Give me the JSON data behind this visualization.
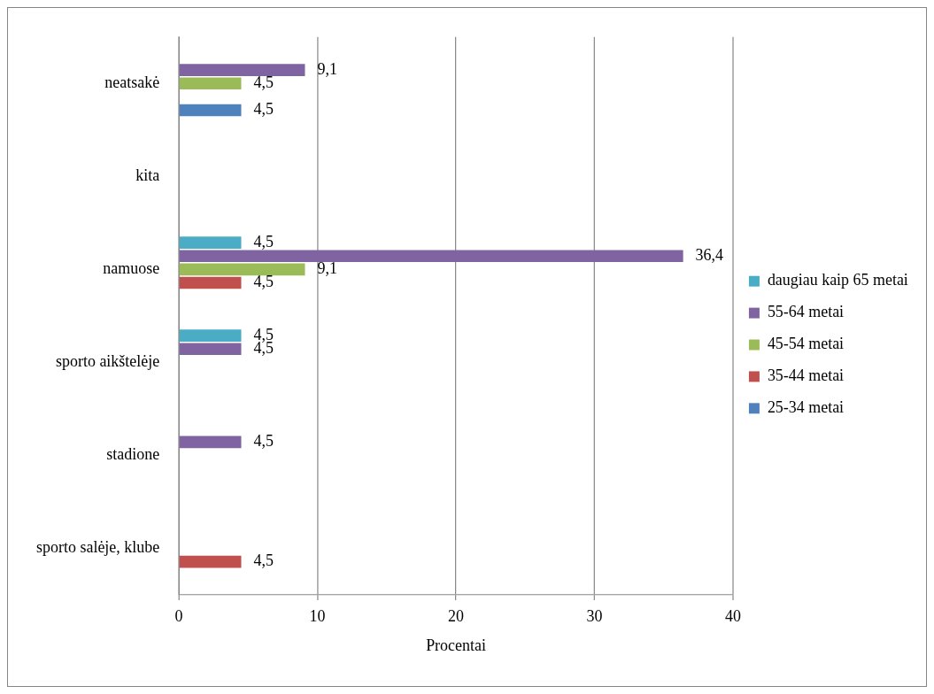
{
  "chart_data": {
    "type": "bar",
    "orientation": "horizontal",
    "categories": [
      "neatsakė",
      "kita",
      "namuose",
      "sporto aikštelėje",
      "stadione",
      "sporto salėje, klube"
    ],
    "series": [
      {
        "name": "daugiau kaip 65 metai",
        "color": "#4bacc6",
        "values": [
          null,
          null,
          4.5,
          4.5,
          null,
          null
        ],
        "value_labels": [
          null,
          null,
          "4,5",
          "4,5",
          null,
          null
        ]
      },
      {
        "name": "55-64 metai",
        "color": "#8064a2",
        "values": [
          9.1,
          null,
          36.4,
          4.5,
          4.5,
          null
        ],
        "value_labels": [
          "9,1",
          null,
          "36,4",
          "4,5",
          "4,5",
          null
        ]
      },
      {
        "name": "45-54 metai",
        "color": "#9bbb59",
        "values": [
          4.5,
          null,
          9.1,
          null,
          null,
          null
        ],
        "value_labels": [
          "4,5",
          null,
          "9,1",
          null,
          null,
          null
        ]
      },
      {
        "name": "35-44 metai",
        "color": "#c0504d",
        "values": [
          null,
          null,
          4.5,
          null,
          null,
          4.5
        ],
        "value_labels": [
          null,
          null,
          "4,5",
          null,
          null,
          "4,5"
        ]
      },
      {
        "name": "25-34 metai",
        "color": "#4f81bd",
        "values": [
          4.5,
          null,
          null,
          null,
          null,
          null
        ],
        "value_labels": [
          "4,5",
          null,
          null,
          null,
          null,
          null
        ]
      }
    ],
    "xlabel": "Procentai",
    "xlim": [
      0,
      40
    ],
    "xticks": [
      0,
      10,
      20,
      30,
      40
    ],
    "grid": "x",
    "legend": "right"
  }
}
